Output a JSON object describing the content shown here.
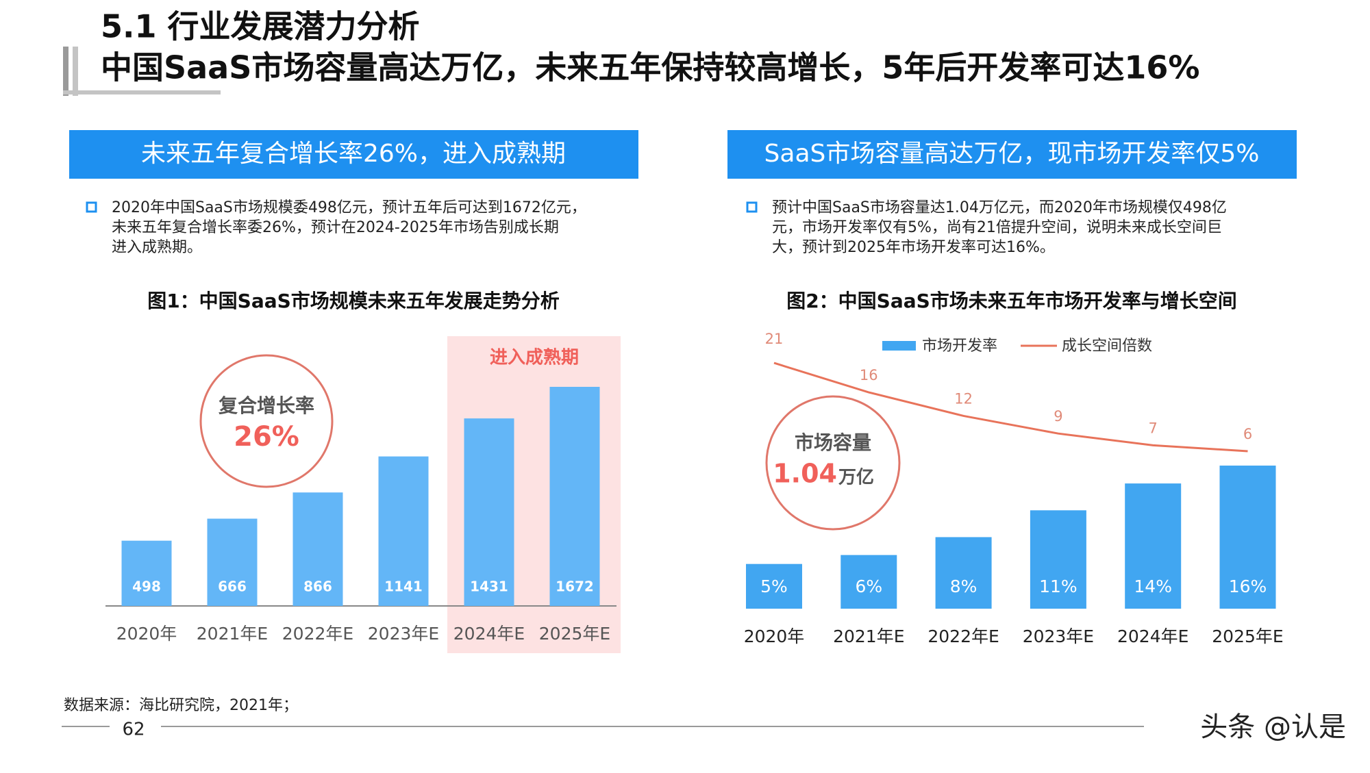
{
  "header": {
    "section": "5.1 行业发展潜力分析",
    "title": "中国SaaS市场容量高达万亿，未来五年保持较高增长，5年后开发率可达16%"
  },
  "panels": [
    {
      "banner": "未来五年复合增长率26%，进入成熟期",
      "bullet": [
        "2020年中国SaaS市场规模委498亿元，预计五年后可达到1672亿元，",
        "未来五年复合增长率委26%，预计在2024-2025年市场告别成长期",
        "进入成熟期。"
      ]
    },
    {
      "banner": "SaaS市场容量高达万亿，现市场开发率仅5%",
      "bullet": [
        "预计中国SaaS市场容量达1.04万亿元，而2020年市场规模仅498亿",
        "元，市场开发率仅有5%，尚有21倍提升空间，说明未来成长空间巨",
        "大，预计到2025年市场开发率可达16%。"
      ]
    }
  ],
  "chart_data": [
    {
      "type": "bar",
      "title": "图1：中国SaaS市场规模未来五年发展走势分析",
      "categories": [
        "2020年",
        "2021年E",
        "2022年E",
        "2023年E",
        "2024年E",
        "2025年E"
      ],
      "values": [
        498,
        666,
        866,
        1141,
        1431,
        1672
      ],
      "color": "#63b6f7",
      "highlight_label": "进入成熟期",
      "callout": {
        "label": "复合增长率",
        "value": "26%"
      }
    },
    {
      "type": "combo",
      "title": "图2：中国SaaS市场未来五年市场开发率与增长空间",
      "categories": [
        "2020年",
        "2021年E",
        "2022年E",
        "2023年E",
        "2024年E",
        "2025年E"
      ],
      "series": [
        {
          "name": "市场开发率",
          "type": "bar",
          "color": "#41a6f1",
          "values": [
            5,
            6,
            8,
            11,
            14,
            16
          ],
          "value_labels": [
            "5%",
            "6%",
            "8%",
            "11%",
            "14%",
            "16%"
          ]
        },
        {
          "name": "成长空间倍数",
          "type": "line",
          "color": "#e8735a",
          "values": [
            21,
            16,
            12,
            9,
            7,
            6
          ]
        }
      ],
      "callout": {
        "label": "市场容量",
        "value": "1.04",
        "unit": "万亿"
      }
    }
  ],
  "source": "数据来源：海比研究院，2021年；",
  "page_number": 62,
  "watermark": "头条 @认是"
}
